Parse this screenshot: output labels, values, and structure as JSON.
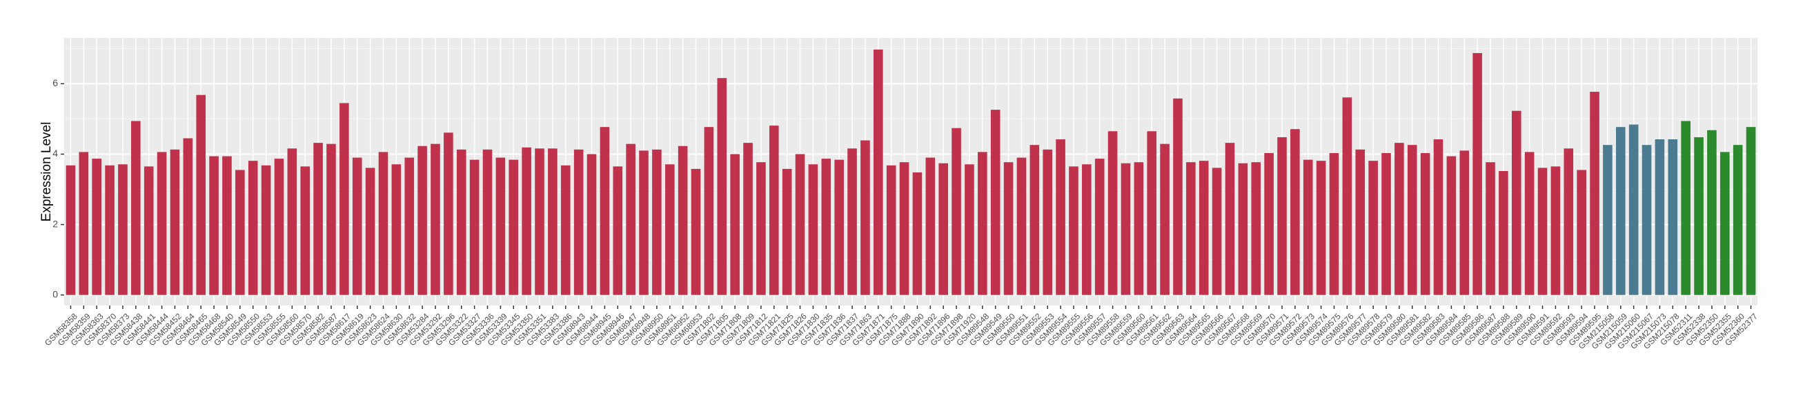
{
  "chart_data": {
    "type": "bar",
    "y_label": "Expression Level",
    "categories": [
      "GSM58358",
      "GSM58359",
      "GSM58363",
      "GSM58370",
      "GSM58373",
      "GSM58438",
      "GSM58441",
      "GSM58444",
      "GSM58452",
      "GSM58464",
      "GSM58465",
      "GSM58468",
      "GSM58540",
      "GSM58549",
      "GSM58550",
      "GSM58553",
      "GSM58555",
      "GSM58560",
      "GSM58570",
      "GSM58582",
      "GSM58587",
      "GSM58617",
      "GSM58619",
      "GSM58623",
      "GSM58624",
      "GSM58630",
      "GSM58632",
      "GSM53284",
      "GSM53292",
      "GSM53296",
      "GSM53322",
      "GSM53327",
      "GSM53336",
      "GSM53339",
      "GSM53345",
      "GSM53350",
      "GSM53351",
      "GSM53383",
      "GSM53386",
      "GSM68943",
      "GSM68944",
      "GSM68945",
      "GSM68946",
      "GSM68947",
      "GSM68948",
      "GSM68950",
      "GSM68951",
      "GSM68952",
      "GSM68953",
      "GSM71802",
      "GSM71805",
      "GSM71808",
      "GSM71809",
      "GSM71812",
      "GSM71821",
      "GSM71825",
      "GSM71826",
      "GSM71830",
      "GSM71835",
      "GSM71836",
      "GSM71837",
      "GSM71863",
      "GSM71871",
      "GSM71875",
      "GSM71888",
      "GSM71890",
      "GSM71892",
      "GSM71896",
      "GSM71898",
      "GSM71920",
      "GSM89548",
      "GSM89549",
      "GSM89550",
      "GSM89551",
      "GSM89552",
      "GSM89553",
      "GSM89554",
      "GSM89555",
      "GSM89556",
      "GSM89557",
      "GSM89558",
      "GSM89559",
      "GSM89560",
      "GSM89561",
      "GSM89562",
      "GSM89563",
      "GSM89564",
      "GSM89565",
      "GSM89566",
      "GSM89567",
      "GSM89568",
      "GSM89569",
      "GSM89570",
      "GSM89571",
      "GSM89572",
      "GSM89573",
      "GSM89574",
      "GSM89575",
      "GSM89576",
      "GSM89577",
      "GSM89578",
      "GSM89579",
      "GSM89580",
      "GSM89581",
      "GSM89582",
      "GSM89583",
      "GSM89584",
      "GSM89585",
      "GSM89586",
      "GSM89587",
      "GSM89588",
      "GSM89589",
      "GSM89590",
      "GSM89591",
      "GSM89592",
      "GSM89593",
      "GSM89594",
      "GSM89595",
      "GSM215058",
      "GSM215059",
      "GSM215060",
      "GSM215067",
      "GSM215073",
      "GSM215078",
      "GSM52311",
      "GSM52338",
      "GSM52350",
      "GSM52355",
      "GSM52360",
      "GSM52377"
    ],
    "values": [
      3.68,
      4.06,
      3.87,
      3.68,
      3.71,
      4.94,
      3.65,
      4.06,
      4.13,
      4.45,
      5.68,
      3.94,
      3.94,
      3.55,
      3.81,
      3.68,
      3.87,
      4.16,
      3.65,
      4.32,
      4.29,
      5.45,
      3.9,
      3.61,
      4.06,
      3.71,
      3.9,
      4.23,
      4.29,
      4.61,
      4.13,
      3.84,
      4.13,
      3.9,
      3.84,
      4.19,
      4.16,
      4.16,
      3.68,
      4.13,
      4.0,
      4.77,
      3.65,
      4.29,
      4.1,
      4.13,
      3.71,
      4.23,
      3.58,
      4.77,
      6.16,
      4.0,
      4.32,
      3.77,
      4.81,
      3.58,
      4.0,
      3.71,
      3.87,
      3.84,
      4.16,
      4.39,
      6.97,
      3.68,
      3.77,
      3.48,
      3.9,
      3.74,
      4.74,
      3.71,
      4.06,
      5.26,
      3.77,
      3.9,
      4.26,
      4.13,
      4.42,
      3.65,
      3.71,
      3.87,
      4.65,
      3.74,
      3.77,
      4.65,
      4.29,
      5.58,
      3.77,
      3.81,
      3.61,
      4.32,
      3.74,
      3.77,
      4.03,
      4.48,
      4.71,
      3.84,
      3.81,
      4.03,
      5.61,
      4.13,
      3.81,
      4.03,
      4.32,
      4.26,
      4.03,
      4.42,
      3.94,
      4.1,
      6.87,
      3.77,
      3.52,
      5.23,
      4.06,
      3.61,
      3.65,
      4.16,
      3.55,
      5.77,
      4.26,
      4.77,
      4.84,
      4.26,
      4.42,
      4.42,
      4.94,
      4.48,
      4.68,
      4.06,
      4.26,
      4.77
    ],
    "bar_colors": [
      "#c0314b",
      "#c0314b",
      "#c0314b",
      "#c0314b",
      "#c0314b",
      "#c0314b",
      "#c0314b",
      "#c0314b",
      "#c0314b",
      "#c0314b",
      "#c0314b",
      "#c0314b",
      "#c0314b",
      "#c0314b",
      "#c0314b",
      "#c0314b",
      "#c0314b",
      "#c0314b",
      "#c0314b",
      "#c0314b",
      "#c0314b",
      "#c0314b",
      "#c0314b",
      "#c0314b",
      "#c0314b",
      "#c0314b",
      "#c0314b",
      "#c0314b",
      "#c0314b",
      "#c0314b",
      "#c0314b",
      "#c0314b",
      "#c0314b",
      "#c0314b",
      "#c0314b",
      "#c0314b",
      "#c0314b",
      "#c0314b",
      "#c0314b",
      "#c0314b",
      "#c0314b",
      "#c0314b",
      "#c0314b",
      "#c0314b",
      "#c0314b",
      "#c0314b",
      "#c0314b",
      "#c0314b",
      "#c0314b",
      "#c0314b",
      "#c0314b",
      "#c0314b",
      "#c0314b",
      "#c0314b",
      "#c0314b",
      "#c0314b",
      "#c0314b",
      "#c0314b",
      "#c0314b",
      "#c0314b",
      "#c0314b",
      "#c0314b",
      "#c0314b",
      "#c0314b",
      "#c0314b",
      "#c0314b",
      "#c0314b",
      "#c0314b",
      "#c0314b",
      "#c0314b",
      "#c0314b",
      "#c0314b",
      "#c0314b",
      "#c0314b",
      "#c0314b",
      "#c0314b",
      "#c0314b",
      "#c0314b",
      "#c0314b",
      "#c0314b",
      "#c0314b",
      "#c0314b",
      "#c0314b",
      "#c0314b",
      "#c0314b",
      "#c0314b",
      "#c0314b",
      "#c0314b",
      "#c0314b",
      "#c0314b",
      "#c0314b",
      "#c0314b",
      "#c0314b",
      "#c0314b",
      "#c0314b",
      "#c0314b",
      "#c0314b",
      "#c0314b",
      "#c0314b",
      "#c0314b",
      "#c0314b",
      "#c0314b",
      "#c0314b",
      "#c0314b",
      "#c0314b",
      "#c0314b",
      "#c0314b",
      "#c0314b",
      "#c0314b",
      "#c0314b",
      "#c0314b",
      "#c0314b",
      "#c0314b",
      "#c0314b",
      "#c0314b",
      "#c0314b",
      "#c0314b",
      "#c0314b",
      "#4a7b90",
      "#4a7b90",
      "#4a7b90",
      "#4a7b90",
      "#4a7b90",
      "#4a7b90",
      "#2b8a2b",
      "#2b8a2b",
      "#2b8a2b",
      "#2b8a2b",
      "#2b8a2b",
      "#2b8a2b"
    ],
    "ylim": [
      -0.3,
      7.3
    ],
    "yticks": [
      0,
      2,
      4,
      6
    ],
    "minor_grid": [
      1,
      3,
      5,
      7
    ],
    "grid": true
  }
}
